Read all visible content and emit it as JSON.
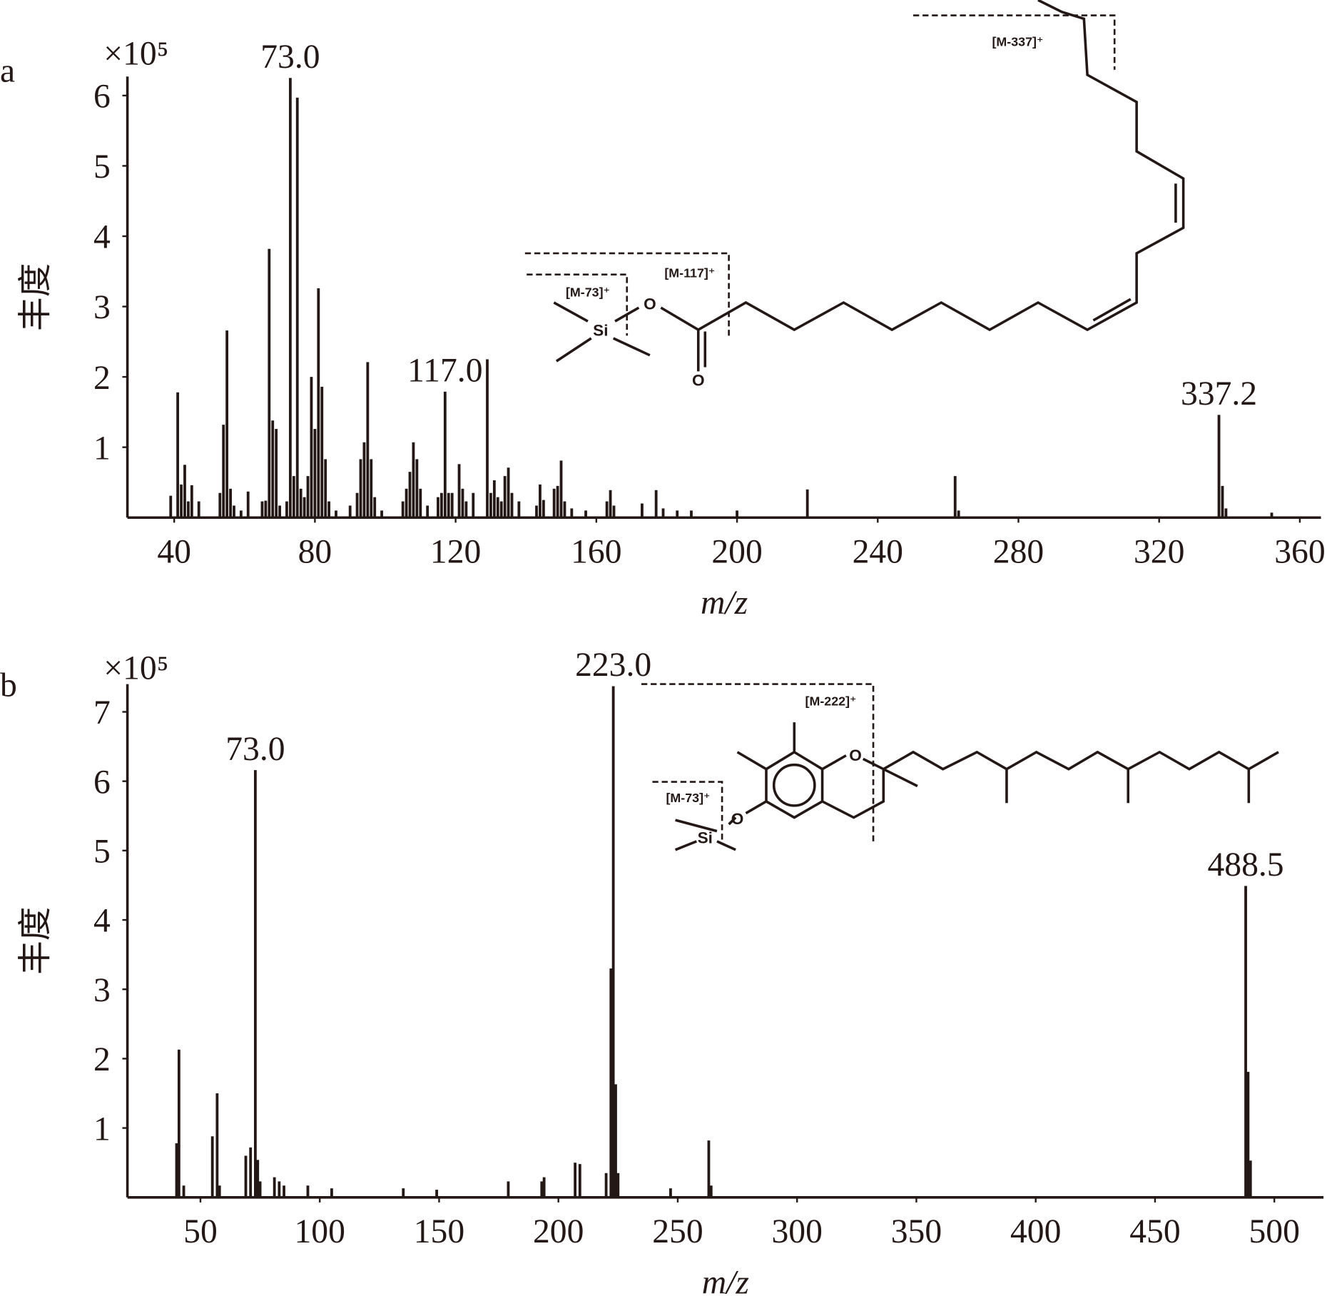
{
  "chart_data": [
    {
      "type": "bar",
      "label": "a",
      "y_multiplier": "×10⁵",
      "ylabel": "丰度",
      "xlabel": "m/z",
      "color": "#231815",
      "x": [
        39,
        41,
        42,
        43,
        44,
        45,
        47,
        53,
        54,
        55,
        56,
        57,
        59,
        61,
        65,
        66,
        67,
        68,
        69,
        70,
        72,
        73,
        74,
        75,
        76,
        77,
        78,
        79,
        80,
        81,
        82,
        83,
        84,
        86,
        90,
        92,
        93,
        94,
        95,
        96,
        97,
        99,
        105,
        106,
        107,
        108,
        109,
        110,
        112,
        115,
        116,
        117,
        118,
        119,
        121,
        122,
        123,
        125,
        129,
        130,
        131,
        132,
        133,
        134,
        135,
        136,
        138,
        143,
        144,
        145,
        148,
        149,
        150,
        151,
        153,
        157,
        163,
        164,
        165,
        173,
        177,
        179,
        183,
        187,
        200,
        220,
        262,
        263,
        337,
        338,
        339,
        352
      ],
      "values": [
        0.31,
        1.78,
        0.47,
        0.75,
        0.23,
        0.46,
        0.23,
        0.35,
        1.32,
        2.66,
        0.41,
        0.17,
        0.1,
        0.37,
        0.23,
        0.24,
        3.82,
        1.38,
        1.26,
        0.17,
        0.23,
        6.25,
        0.59,
        5.97,
        0.41,
        0.29,
        0.59,
        2.0,
        1.26,
        3.26,
        1.86,
        0.83,
        0.23,
        0.1,
        0.17,
        0.35,
        0.83,
        1.07,
        2.21,
        0.83,
        0.29,
        0.1,
        0.23,
        0.41,
        0.65,
        1.07,
        0.83,
        0.41,
        0.17,
        0.29,
        0.35,
        1.79,
        0.35,
        0.35,
        0.76,
        0.41,
        0.23,
        0.35,
        2.25,
        0.35,
        0.53,
        0.29,
        0.23,
        0.59,
        0.71,
        0.35,
        0.23,
        0.17,
        0.47,
        0.25,
        0.41,
        0.45,
        0.81,
        0.23,
        0.13,
        0.1,
        0.23,
        0.39,
        0.17,
        0.2,
        0.39,
        0.13,
        0.1,
        0.1,
        0.1,
        0.4,
        0.59,
        0.1,
        1.46,
        0.45,
        0.13,
        0.07
      ],
      "xlim": [
        26.7,
        366
      ],
      "ylim": [
        0,
        6.27
      ],
      "xticks": [
        40,
        80,
        120,
        160,
        200,
        240,
        280,
        320,
        360
      ],
      "yticks": [
        1,
        2,
        3,
        4,
        5,
        6
      ],
      "annotations": [
        "73.0",
        "117.0",
        "337.2"
      ],
      "structure_labels": [
        "[M-337]⁺",
        "[M-117]⁺",
        "[M-73]⁺",
        "O",
        "Si",
        "O"
      ]
    },
    {
      "type": "bar",
      "label": "b",
      "y_multiplier": "×10⁵",
      "ylabel": "丰度",
      "xlabel": "m/z",
      "color": "#231815",
      "x": [
        40,
        41,
        43,
        55,
        57,
        58,
        69,
        71,
        73,
        74,
        75,
        81,
        83,
        85,
        95,
        105,
        135,
        149,
        179,
        193,
        194,
        207,
        209,
        220,
        222,
        223,
        224,
        225,
        247,
        263,
        264,
        488,
        489,
        490
      ],
      "values": [
        0.78,
        2.13,
        0.17,
        0.88,
        1.5,
        0.17,
        0.6,
        0.72,
        6.16,
        0.54,
        0.23,
        0.29,
        0.23,
        0.17,
        0.17,
        0.13,
        0.13,
        0.11,
        0.23,
        0.23,
        0.29,
        0.5,
        0.48,
        0.35,
        3.3,
        7.37,
        1.63,
        0.35,
        0.13,
        0.82,
        0.17,
        4.49,
        1.81,
        0.53
      ],
      "xlim": [
        19.4,
        520.6
      ],
      "ylim": [
        0,
        7.4
      ],
      "xticks": [
        50,
        100,
        150,
        200,
        250,
        300,
        350,
        400,
        450,
        500
      ],
      "yticks": [
        1,
        2,
        3,
        4,
        5,
        6,
        7
      ],
      "annotations": [
        "73.0",
        "223.0",
        "488.5"
      ],
      "structure_labels": [
        "[M-222]⁺",
        "[M-73]⁺",
        "O",
        "O",
        "Si"
      ]
    }
  ]
}
